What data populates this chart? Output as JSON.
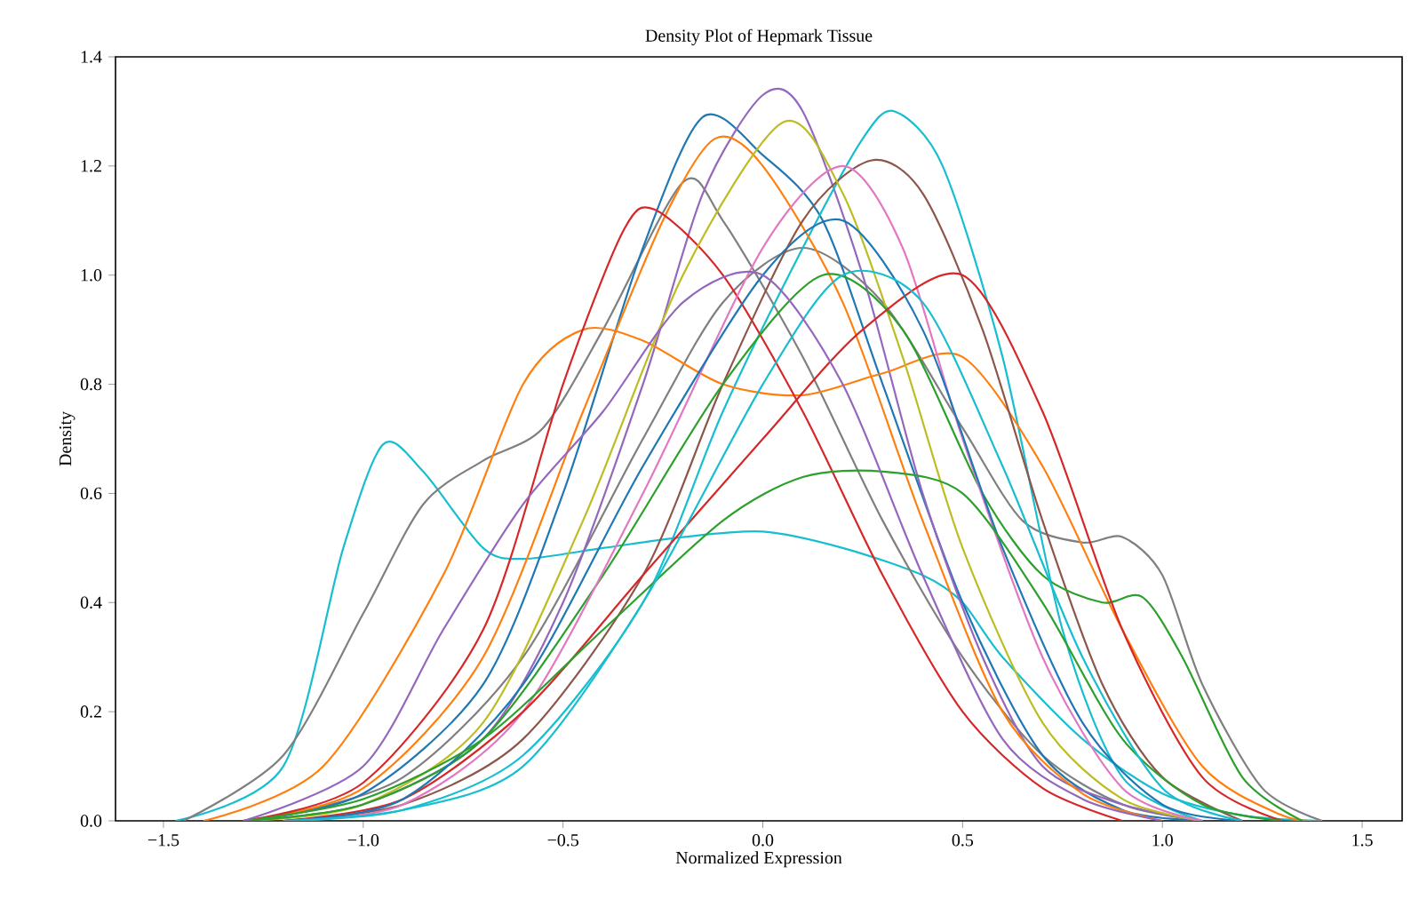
{
  "chart_data": {
    "type": "line",
    "title": "Density Plot of Hepmark Tissue",
    "xlabel": "Normalized Expression",
    "ylabel": "Density",
    "xlim": [
      -1.62,
      1.6
    ],
    "ylim": [
      0,
      1.4
    ],
    "xticks": [
      {
        "value": -1.5,
        "label": "−1.5"
      },
      {
        "value": -1.0,
        "label": "−1.0"
      },
      {
        "value": -0.5,
        "label": "−0.5"
      },
      {
        "value": 0.0,
        "label": "0.0"
      },
      {
        "value": 0.5,
        "label": "0.5"
      },
      {
        "value": 1.0,
        "label": "1.0"
      },
      {
        "value": 1.5,
        "label": "1.5"
      }
    ],
    "yticks": [
      {
        "value": 0,
        "label": "0.0"
      },
      {
        "value": 0.2,
        "label": "0.2"
      },
      {
        "value": 0.4,
        "label": "0.4"
      },
      {
        "value": 0.6,
        "label": "0.6"
      },
      {
        "value": 0.8,
        "label": "0.8"
      },
      {
        "value": 1.0,
        "label": "1.0"
      },
      {
        "value": 1.2,
        "label": "1.2"
      },
      {
        "value": 1.4,
        "label": "1.4"
      }
    ],
    "grid": false,
    "marker": "none",
    "line_style": "solid",
    "series": [
      {
        "color": "#17becf",
        "x": [
          -1.47,
          -1.2,
          -1.05,
          -0.95,
          -0.85,
          -0.7,
          -0.6,
          -0.4,
          -0.2,
          0.0,
          0.2,
          0.4,
          0.5,
          0.6,
          0.8,
          1.0,
          1.2,
          1.4
        ],
        "values": [
          0.0,
          0.1,
          0.5,
          0.69,
          0.64,
          0.5,
          0.48,
          0.5,
          0.52,
          0.53,
          0.5,
          0.45,
          0.4,
          0.3,
          0.15,
          0.05,
          0.01,
          0.0
        ]
      },
      {
        "color": "#7f7f7f",
        "x": [
          -1.2,
          -0.9,
          -0.6,
          -0.3,
          -0.1,
          0.1,
          0.3,
          0.5,
          0.65,
          0.8,
          0.9,
          1.0,
          1.1,
          1.25,
          1.4
        ],
        "values": [
          0.01,
          0.08,
          0.3,
          0.7,
          0.95,
          1.05,
          0.95,
          0.72,
          0.55,
          0.51,
          0.52,
          0.45,
          0.25,
          0.06,
          0.0
        ]
      },
      {
        "color": "#7f7f7f",
        "x": [
          -1.45,
          -1.2,
          -1.0,
          -0.85,
          -0.7,
          -0.55,
          -0.4,
          -0.2,
          -0.1,
          0.1,
          0.3,
          0.5,
          0.7,
          0.9,
          1.1
        ],
        "values": [
          0.0,
          0.12,
          0.38,
          0.58,
          0.66,
          0.72,
          0.9,
          1.17,
          1.1,
          0.85,
          0.55,
          0.3,
          0.12,
          0.03,
          0.0
        ]
      },
      {
        "color": "#1f77b4",
        "x": [
          -1.3,
          -1.0,
          -0.7,
          -0.5,
          -0.3,
          -0.15,
          0.0,
          0.15,
          0.3,
          0.5,
          0.7,
          0.9,
          1.1
        ],
        "values": [
          0.0,
          0.05,
          0.25,
          0.6,
          1.05,
          1.29,
          1.22,
          1.1,
          0.8,
          0.4,
          0.12,
          0.02,
          0.0
        ]
      },
      {
        "color": "#9467bd",
        "x": [
          -1.3,
          -1.0,
          -0.7,
          -0.5,
          -0.3,
          -0.15,
          0.0,
          0.1,
          0.25,
          0.4,
          0.55,
          0.7,
          0.9,
          1.1
        ],
        "values": [
          0.0,
          0.03,
          0.15,
          0.4,
          0.8,
          1.15,
          1.33,
          1.3,
          1.0,
          0.6,
          0.3,
          0.1,
          0.03,
          0.0
        ]
      },
      {
        "color": "#17becf",
        "x": [
          -1.2,
          -0.9,
          -0.6,
          -0.3,
          -0.1,
          0.1,
          0.25,
          0.33,
          0.45,
          0.6,
          0.75,
          0.9,
          1.1
        ],
        "values": [
          0.0,
          0.02,
          0.12,
          0.4,
          0.75,
          1.05,
          1.25,
          1.3,
          1.2,
          0.85,
          0.35,
          0.08,
          0.0
        ]
      },
      {
        "color": "#ff7f0e",
        "x": [
          -1.3,
          -1.0,
          -0.7,
          -0.45,
          -0.25,
          -0.12,
          0.0,
          0.2,
          0.4,
          0.6,
          0.8,
          1.0
        ],
        "values": [
          0.0,
          0.06,
          0.3,
          0.75,
          1.1,
          1.25,
          1.2,
          0.95,
          0.55,
          0.2,
          0.05,
          0.0
        ]
      },
      {
        "color": "#ff7f0e",
        "x": [
          -1.4,
          -1.1,
          -0.8,
          -0.6,
          -0.45,
          -0.3,
          -0.1,
          0.1,
          0.3,
          0.5,
          0.7,
          0.9,
          1.1,
          1.3,
          1.4
        ],
        "values": [
          0.0,
          0.1,
          0.45,
          0.8,
          0.9,
          0.88,
          0.8,
          0.78,
          0.82,
          0.85,
          0.65,
          0.35,
          0.1,
          0.01,
          0.0
        ]
      },
      {
        "color": "#d62728",
        "x": [
          -1.3,
          -1.0,
          -0.7,
          -0.5,
          -0.35,
          -0.27,
          -0.1,
          0.1,
          0.3,
          0.5,
          0.7,
          0.9
        ],
        "values": [
          0.0,
          0.07,
          0.35,
          0.8,
          1.08,
          1.12,
          1.0,
          0.75,
          0.45,
          0.2,
          0.06,
          0.0
        ]
      },
      {
        "color": "#8c564b",
        "x": [
          -1.2,
          -0.9,
          -0.6,
          -0.3,
          -0.1,
          0.1,
          0.27,
          0.4,
          0.55,
          0.7,
          0.85,
          1.0,
          1.2
        ],
        "values": [
          0.0,
          0.03,
          0.15,
          0.45,
          0.8,
          1.1,
          1.21,
          1.15,
          0.9,
          0.55,
          0.25,
          0.08,
          0.0
        ]
      },
      {
        "color": "#bcbd22",
        "x": [
          -1.3,
          -1.0,
          -0.7,
          -0.45,
          -0.2,
          0.05,
          0.2,
          0.35,
          0.5,
          0.7,
          0.9,
          1.1
        ],
        "values": [
          0.0,
          0.03,
          0.18,
          0.55,
          1.0,
          1.28,
          1.15,
          0.85,
          0.5,
          0.18,
          0.04,
          0.0
        ]
      },
      {
        "color": "#2ca02c",
        "x": [
          -1.3,
          -1.0,
          -0.7,
          -0.4,
          -0.1,
          0.15,
          0.35,
          0.55,
          0.7,
          0.85,
          0.95,
          1.05,
          1.2,
          1.35
        ],
        "values": [
          0.0,
          0.03,
          0.15,
          0.45,
          0.8,
          1.0,
          0.9,
          0.6,
          0.45,
          0.4,
          0.41,
          0.3,
          0.08,
          0.0
        ]
      },
      {
        "color": "#e377c2",
        "x": [
          -1.2,
          -0.9,
          -0.6,
          -0.3,
          0.0,
          0.2,
          0.35,
          0.5,
          0.7,
          0.9,
          1.1
        ],
        "values": [
          0.0,
          0.03,
          0.2,
          0.6,
          1.05,
          1.2,
          1.05,
          0.7,
          0.3,
          0.06,
          0.0
        ]
      },
      {
        "color": "#d62728",
        "x": [
          -1.2,
          -0.9,
          -0.6,
          -0.3,
          0.0,
          0.25,
          0.5,
          0.7,
          0.9,
          1.1,
          1.3
        ],
        "values": [
          0.0,
          0.04,
          0.2,
          0.45,
          0.7,
          0.9,
          1.0,
          0.75,
          0.35,
          0.08,
          0.0
        ]
      },
      {
        "color": "#1f77b4",
        "x": [
          -1.2,
          -0.9,
          -0.6,
          -0.3,
          0.0,
          0.2,
          0.4,
          0.6,
          0.8,
          1.0,
          1.2
        ],
        "values": [
          0.0,
          0.04,
          0.25,
          0.65,
          1.0,
          1.1,
          0.9,
          0.5,
          0.18,
          0.03,
          0.0
        ]
      },
      {
        "color": "#2ca02c",
        "x": [
          -1.3,
          -1.0,
          -0.7,
          -0.4,
          -0.1,
          0.1,
          0.3,
          0.5,
          0.7,
          0.9,
          1.1,
          1.3
        ],
        "values": [
          0.0,
          0.04,
          0.15,
          0.35,
          0.55,
          0.63,
          0.64,
          0.6,
          0.4,
          0.15,
          0.03,
          0.0
        ]
      },
      {
        "color": "#17becf",
        "x": [
          -1.2,
          -0.9,
          -0.6,
          -0.3,
          0.0,
          0.2,
          0.4,
          0.6,
          0.8,
          1.0,
          1.2
        ],
        "values": [
          0.0,
          0.02,
          0.1,
          0.4,
          0.8,
          1.0,
          0.95,
          0.65,
          0.3,
          0.06,
          0.0
        ]
      },
      {
        "color": "#9467bd",
        "x": [
          -1.3,
          -1.0,
          -0.8,
          -0.6,
          -0.4,
          -0.2,
          0.0,
          0.2,
          0.4,
          0.6,
          0.8,
          1.0
        ],
        "values": [
          0.0,
          0.1,
          0.35,
          0.58,
          0.75,
          0.95,
          1.0,
          0.8,
          0.45,
          0.15,
          0.04,
          0.0
        ]
      }
    ]
  }
}
